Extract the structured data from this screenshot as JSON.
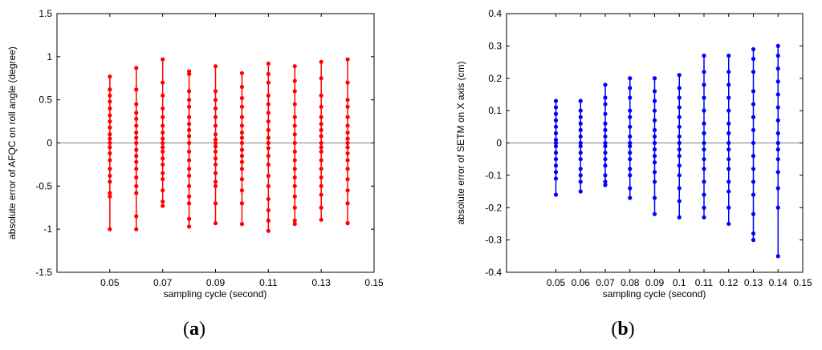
{
  "chart_data": [
    {
      "type": "scatter",
      "panel_label": "a",
      "xlabel": "sampling cycle (second)",
      "ylabel": "absolute error of AFQC on roll angle (degree)",
      "xlim": [
        0.03,
        0.15
      ],
      "ylim": [
        -1.5,
        1.5
      ],
      "xticks": [
        "0.05",
        "0.07",
        "0.09",
        "0.11",
        "0.13",
        "0.15"
      ],
      "yticks": [
        "-1.5",
        "-1",
        "-0.5",
        "0",
        "0.5",
        "1",
        "1.5"
      ],
      "grid": false,
      "zero_line": true,
      "color": "#ff0000",
      "series": [
        {
          "x": 0.05,
          "values": [
            -1.0,
            -0.62,
            -0.58,
            -0.45,
            -0.38,
            -0.3,
            -0.2,
            -0.12,
            -0.05,
            0.0,
            0.05,
            0.1,
            0.18,
            0.25,
            0.32,
            0.4,
            0.48,
            0.55,
            0.62,
            0.77
          ]
        },
        {
          "x": 0.06,
          "values": [
            -1.0,
            -0.85,
            -0.58,
            -0.5,
            -0.4,
            -0.3,
            -0.22,
            -0.15,
            -0.08,
            0.0,
            0.06,
            0.12,
            0.2,
            0.28,
            0.35,
            0.45,
            0.62,
            0.87
          ]
        },
        {
          "x": 0.07,
          "values": [
            -0.73,
            -0.68,
            -0.55,
            -0.42,
            -0.35,
            -0.25,
            -0.18,
            -0.1,
            -0.05,
            0.0,
            0.05,
            0.12,
            0.2,
            0.3,
            0.4,
            0.55,
            0.7,
            0.97
          ]
        },
        {
          "x": 0.08,
          "values": [
            -0.97,
            -0.88,
            -0.7,
            -0.62,
            -0.5,
            -0.38,
            -0.3,
            -0.2,
            -0.1,
            0.0,
            0.08,
            0.15,
            0.22,
            0.3,
            0.42,
            0.5,
            0.6,
            0.8,
            0.83
          ]
        },
        {
          "x": 0.09,
          "values": [
            -0.93,
            -0.7,
            -0.5,
            -0.45,
            -0.35,
            -0.25,
            -0.18,
            -0.1,
            -0.04,
            0.0,
            0.04,
            0.1,
            0.2,
            0.3,
            0.4,
            0.5,
            0.6,
            0.89
          ]
        },
        {
          "x": 0.1,
          "values": [
            -0.94,
            -0.7,
            -0.55,
            -0.42,
            -0.3,
            -0.22,
            -0.15,
            -0.08,
            0.0,
            0.06,
            0.12,
            0.2,
            0.3,
            0.42,
            0.52,
            0.65,
            0.81
          ]
        },
        {
          "x": 0.11,
          "values": [
            -1.02,
            -0.9,
            -0.78,
            -0.65,
            -0.5,
            -0.38,
            -0.25,
            -0.15,
            -0.06,
            0.0,
            0.06,
            0.15,
            0.25,
            0.35,
            0.45,
            0.55,
            0.7,
            0.8,
            0.92
          ]
        },
        {
          "x": 0.12,
          "values": [
            -0.94,
            -0.9,
            -0.75,
            -0.62,
            -0.5,
            -0.4,
            -0.3,
            -0.2,
            -0.1,
            0.0,
            0.1,
            0.2,
            0.3,
            0.45,
            0.6,
            0.72,
            0.89
          ]
        },
        {
          "x": 0.13,
          "values": [
            -0.89,
            -0.75,
            -0.6,
            -0.5,
            -0.4,
            -0.3,
            -0.2,
            -0.1,
            -0.05,
            0.0,
            0.08,
            0.15,
            0.22,
            0.3,
            0.42,
            0.55,
            0.75,
            0.94
          ]
        },
        {
          "x": 0.14,
          "values": [
            -0.93,
            -0.7,
            -0.55,
            -0.42,
            -0.3,
            -0.2,
            -0.12,
            -0.05,
            0.0,
            0.05,
            0.12,
            0.2,
            0.3,
            0.42,
            0.5,
            0.7,
            0.97
          ]
        }
      ]
    },
    {
      "type": "scatter",
      "panel_label": "b",
      "xlabel": "sampling cycle (second)",
      "ylabel": "absolute error of SETM on X axis (cm)",
      "xlim": [
        0.03,
        0.15
      ],
      "ylim": [
        -0.4,
        0.4
      ],
      "xticks": [
        "0.05",
        "0.06",
        "0.07",
        "0.08",
        "0.09",
        "0.1",
        "0.11",
        "0.12",
        "0.13",
        "0.14",
        "0.15"
      ],
      "yticks": [
        "-0.4",
        "-0.3",
        "-0.2",
        "-0.1",
        "0",
        "0.1",
        "0.2",
        "0.3",
        "0.4"
      ],
      "grid": false,
      "zero_line": true,
      "color": "#0000ff",
      "series": [
        {
          "x": 0.05,
          "values": [
            -0.16,
            -0.11,
            -0.09,
            -0.07,
            -0.05,
            -0.03,
            -0.01,
            0.0,
            0.01,
            0.03,
            0.05,
            0.07,
            0.09,
            0.11,
            0.13
          ]
        },
        {
          "x": 0.06,
          "values": [
            -0.15,
            -0.12,
            -0.1,
            -0.08,
            -0.05,
            -0.03,
            -0.01,
            0.0,
            0.02,
            0.04,
            0.06,
            0.08,
            0.1,
            0.13
          ]
        },
        {
          "x": 0.07,
          "values": [
            -0.13,
            -0.12,
            -0.1,
            -0.07,
            -0.05,
            -0.03,
            -0.01,
            0.0,
            0.02,
            0.04,
            0.06,
            0.09,
            0.12,
            0.14,
            0.18
          ]
        },
        {
          "x": 0.08,
          "values": [
            -0.17,
            -0.14,
            -0.1,
            -0.08,
            -0.05,
            -0.03,
            -0.01,
            0.0,
            0.02,
            0.05,
            0.08,
            0.1,
            0.14,
            0.17,
            0.2
          ]
        },
        {
          "x": 0.09,
          "values": [
            -0.22,
            -0.17,
            -0.12,
            -0.09,
            -0.06,
            -0.04,
            -0.02,
            0.0,
            0.02,
            0.04,
            0.07,
            0.1,
            0.13,
            0.16,
            0.2
          ]
        },
        {
          "x": 0.1,
          "values": [
            -0.23,
            -0.18,
            -0.14,
            -0.1,
            -0.07,
            -0.04,
            -0.02,
            0.0,
            0.02,
            0.05,
            0.08,
            0.11,
            0.14,
            0.17,
            0.21
          ]
        },
        {
          "x": 0.11,
          "values": [
            -0.23,
            -0.2,
            -0.16,
            -0.12,
            -0.08,
            -0.05,
            -0.02,
            0.0,
            0.03,
            0.06,
            0.1,
            0.14,
            0.18,
            0.22,
            0.27
          ]
        },
        {
          "x": 0.12,
          "values": [
            -0.25,
            -0.2,
            -0.15,
            -0.12,
            -0.08,
            -0.05,
            -0.02,
            0.0,
            0.03,
            0.06,
            0.1,
            0.14,
            0.18,
            0.22,
            0.27
          ]
        },
        {
          "x": 0.13,
          "values": [
            -0.3,
            -0.28,
            -0.22,
            -0.16,
            -0.12,
            -0.08,
            -0.04,
            0.0,
            0.04,
            0.08,
            0.12,
            0.16,
            0.22,
            0.26,
            0.29
          ]
        },
        {
          "x": 0.14,
          "values": [
            -0.35,
            -0.2,
            -0.14,
            -0.09,
            -0.05,
            -0.02,
            0.0,
            0.03,
            0.07,
            0.11,
            0.15,
            0.19,
            0.23,
            0.27,
            0.3
          ]
        }
      ]
    }
  ]
}
